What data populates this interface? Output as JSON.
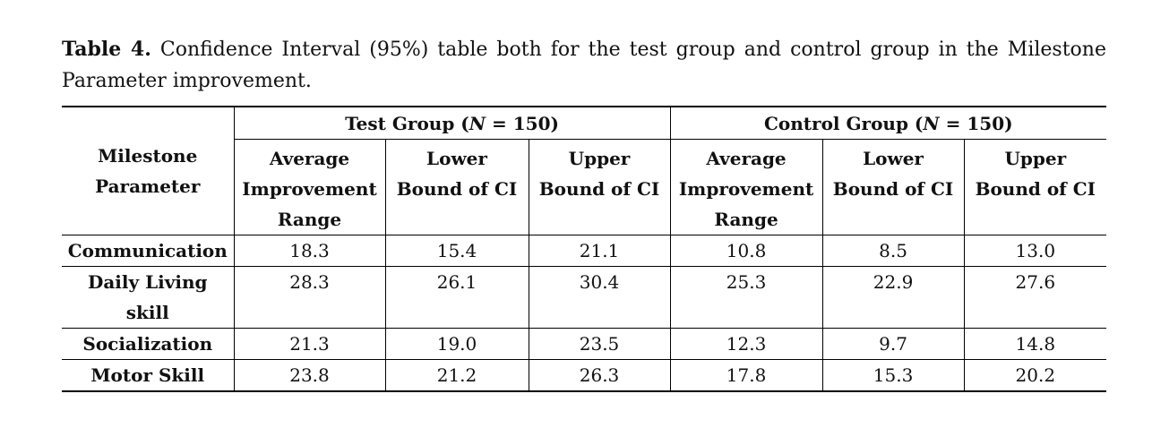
{
  "caption": {
    "label": "Table 4.",
    "text": "Confidence Interval (95%) table both for the test group and control group in the Milestone Parameter improvement."
  },
  "table": {
    "corner_header_line1": "Milestone",
    "corner_header_line2": "Parameter",
    "groups": [
      {
        "prefix": "Test Group (",
        "n_symbol": "N",
        "suffix": " = 150)"
      },
      {
        "prefix": "Control Group (",
        "n_symbol": "N",
        "suffix": " = 150)"
      }
    ],
    "subheaders": [
      {
        "line1": "Average",
        "line2": "Improvement",
        "line3": "Range"
      },
      {
        "line1": "Lower",
        "line2": "Bound of CI"
      },
      {
        "line1": "Upper",
        "line2": "Bound of CI"
      },
      {
        "line1": "Average",
        "line2": "Improvement",
        "line3": "Range"
      },
      {
        "line1": "Lower",
        "line2": "Bound of CI"
      },
      {
        "line1": "Upper",
        "line2": "Bound of CI"
      }
    ],
    "rows": [
      {
        "param_line1": "Communication",
        "param_line2": "",
        "values": [
          "18.3",
          "15.4",
          "21.1",
          "10.8",
          "8.5",
          "13.0"
        ]
      },
      {
        "param_line1": "Daily Living",
        "param_line2": "skill",
        "values": [
          "28.3",
          "26.1",
          "30.4",
          "25.3",
          "22.9",
          "27.6"
        ]
      },
      {
        "param_line1": "Socialization",
        "param_line2": "",
        "values": [
          "21.3",
          "19.0",
          "23.5",
          "12.3",
          "9.7",
          "14.8"
        ]
      },
      {
        "param_line1": "Motor Skill",
        "param_line2": "",
        "values": [
          "23.8",
          "21.2",
          "26.3",
          "17.8",
          "15.3",
          "20.2"
        ]
      }
    ]
  }
}
